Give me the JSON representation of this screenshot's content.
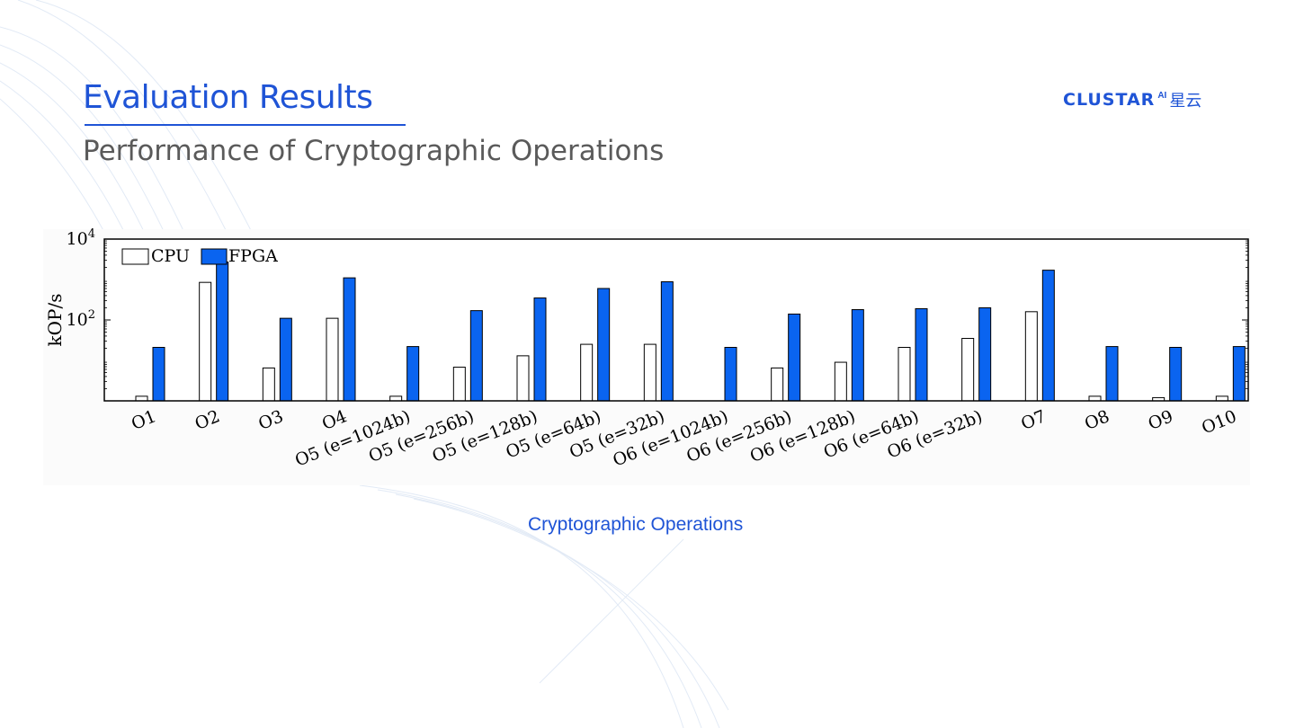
{
  "slide": {
    "title": "Evaluation Results",
    "subtitle": "Performance of Cryptographic Operations",
    "logo_text": "CLUSTAR",
    "logo_ai": "AI",
    "logo_cn": "星云",
    "accent_color": "#1f54d6"
  },
  "chart_data": {
    "type": "bar",
    "title": "",
    "xlabel": "Cryptographic Operations",
    "ylabel": "kOP/s",
    "yscale": "log",
    "ylim": [
      1,
      10000
    ],
    "yticks": [
      {
        "value": 100,
        "base": "10",
        "exp": "2"
      },
      {
        "value": 10000,
        "base": "10",
        "exp": "4"
      }
    ],
    "legend_position": "top-left",
    "grid": false,
    "categories": [
      "O1",
      "O2",
      "O3",
      "O4",
      "O5 (e=1024b)",
      "O5 (e=256b)",
      "O5 (e=128b)",
      "O5 (e=64b)",
      "O5 (e=32b)",
      "O6 (e=1024b)",
      "O6 (e=256b)",
      "O6 (e=128b)",
      "O6 (e=64b)",
      "O6 (e=32b)",
      "O7",
      "O8",
      "O9",
      "O10"
    ],
    "series": [
      {
        "name": "CPU",
        "color": "#ffffff",
        "stroke": "#000000",
        "values": [
          1.3,
          850,
          6.5,
          110,
          1.3,
          6.8,
          13,
          25,
          25,
          1,
          6.5,
          9,
          21,
          35,
          160,
          1.3,
          1.2,
          1.3
        ]
      },
      {
        "name": "FPGA",
        "color": "#0a64f0",
        "stroke": "#000000",
        "values": [
          21,
          2700,
          110,
          1100,
          22,
          170,
          350,
          600,
          880,
          21,
          140,
          180,
          190,
          200,
          1700,
          22,
          21,
          22
        ]
      }
    ]
  }
}
